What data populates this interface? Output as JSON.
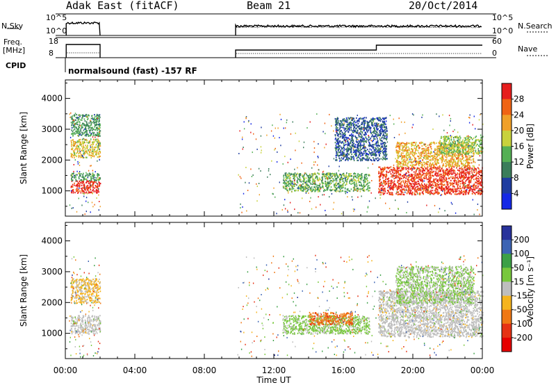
{
  "header": {
    "station": "Adak East (fitACF)",
    "beam": "Beam 21",
    "date": "20/Oct/2014"
  },
  "top_panels": {
    "nsky_label": "N.Sky",
    "nsky_ticks": [
      "10^5",
      "10^0"
    ],
    "nsearch_label": "N.Search",
    "nsearch_ticks": [
      "10^5",
      "10^0"
    ],
    "freq_label": "Freq.",
    "freq_unit": "[MHz]",
    "freq_ticks": [
      "18",
      "8"
    ],
    "nave_label": "Nave",
    "nave_ticks": [
      "60",
      "0"
    ],
    "cpid_label": "CPID",
    "cpid_text": "normalsound (fast) -157 RF"
  },
  "colors": {
    "power_scale": [
      "#1428e6",
      "#1e3ca0",
      "#3a7d5a",
      "#55b055",
      "#c8d23c",
      "#f0a028",
      "#f06414",
      "#e61e1e"
    ],
    "velocity_scale": [
      "#28329b",
      "#3c64b4",
      "#3ca046",
      "#78c83c",
      "#bebebe",
      "#f5b41e",
      "#f07814",
      "#e63214",
      "#e60000"
    ]
  },
  "chart_data": [
    {
      "type": "heatmap",
      "panel": "power",
      "xlabel": "Time UT",
      "ylabel": "Slant Range [km]",
      "x_ticks": [
        "00:00",
        "04:00",
        "08:00",
        "12:00",
        "16:00",
        "20:00",
        "00:00"
      ],
      "y_ticks": [
        "1000",
        "2000",
        "3000",
        "4000"
      ],
      "xlim_hours": [
        0,
        24
      ],
      "ylim_km": [
        180,
        4600
      ],
      "colorbar_label": "Power [dB]",
      "colorbar_ticks": [
        "28",
        "24",
        "20",
        "16",
        "12",
        "8",
        "4"
      ],
      "colorbar_range": [
        0,
        30
      ],
      "regions": [
        {
          "t": [
            0.3,
            2.0
          ],
          "r": [
            950,
            1350
          ],
          "value": 28
        },
        {
          "t": [
            0.3,
            2.0
          ],
          "r": [
            1350,
            1600
          ],
          "value": 12
        },
        {
          "t": [
            0.3,
            2.0
          ],
          "r": [
            2100,
            2700
          ],
          "value": 18
        },
        {
          "t": [
            0.3,
            2.0
          ],
          "r": [
            2800,
            3500
          ],
          "value": 11
        },
        {
          "t": [
            12.5,
            17.5
          ],
          "r": [
            1000,
            1600
          ],
          "value": 13
        },
        {
          "t": [
            15.5,
            18.5
          ],
          "r": [
            2000,
            3400
          ],
          "value": 7
        },
        {
          "t": [
            18.0,
            24.0
          ],
          "r": [
            900,
            1800
          ],
          "value": 27
        },
        {
          "t": [
            19.0,
            23.5
          ],
          "r": [
            1800,
            2600
          ],
          "value": 20
        },
        {
          "t": [
            21.5,
            24.0
          ],
          "r": [
            2200,
            2800
          ],
          "value": 15
        }
      ]
    },
    {
      "type": "heatmap",
      "panel": "velocity",
      "xlabel": "Time UT",
      "ylabel": "Slant Range [km]",
      "x_ticks": [
        "00:00",
        "04:00",
        "08:00",
        "12:00",
        "16:00",
        "20:00",
        "00:00"
      ],
      "y_ticks": [
        "1000",
        "2000",
        "3000",
        "4000"
      ],
      "xlim_hours": [
        0,
        24
      ],
      "ylim_km": [
        180,
        4600
      ],
      "colorbar_label": "Velocity [m s⁻¹]",
      "colorbar_ticks": [
        "200",
        "100",
        "50",
        "15",
        "-15",
        "-50",
        "-100",
        "-200"
      ],
      "colorbar_range": [
        -250,
        250
      ],
      "regions": [
        {
          "t": [
            0.3,
            2.0
          ],
          "r": [
            1000,
            1600
          ],
          "value": 0
        },
        {
          "t": [
            0.3,
            2.0
          ],
          "r": [
            2000,
            2800
          ],
          "value": -40
        },
        {
          "t": [
            12.5,
            17.5
          ],
          "r": [
            1000,
            1600
          ],
          "value": 40
        },
        {
          "t": [
            14.0,
            16.5
          ],
          "r": [
            1300,
            1700
          ],
          "value": -120
        },
        {
          "t": [
            18.0,
            24.0
          ],
          "r": [
            900,
            2400
          ],
          "value": 0
        },
        {
          "t": [
            19.0,
            23.5
          ],
          "r": [
            2000,
            3200
          ],
          "value": 30
        }
      ]
    }
  ]
}
